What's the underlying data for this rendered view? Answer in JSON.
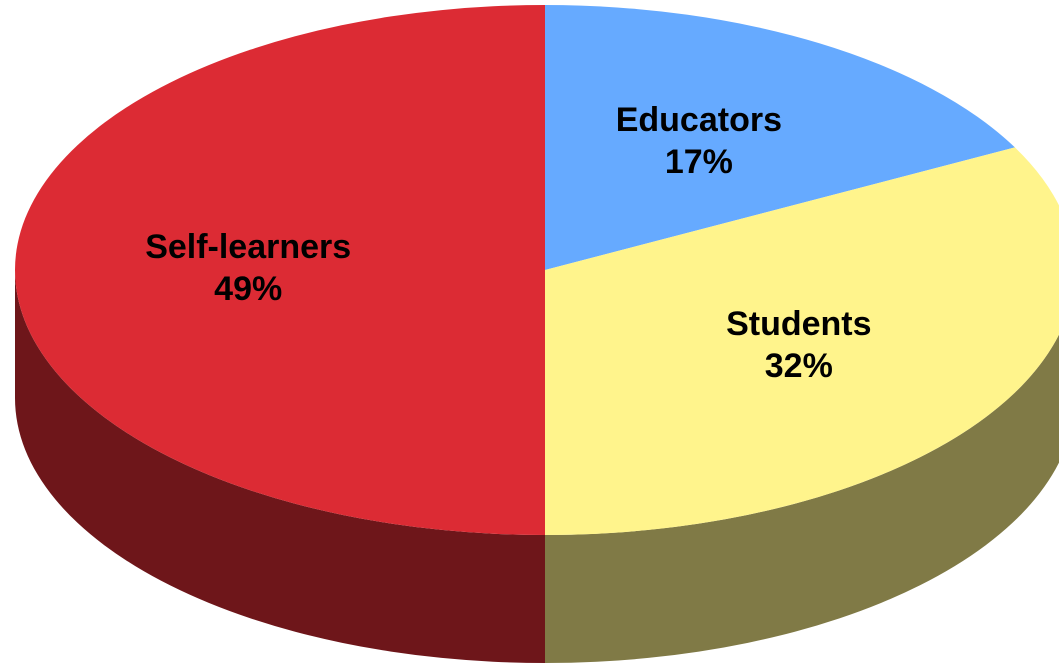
{
  "chart_data": {
    "type": "pie",
    "categories": [
      "Educators",
      "Students",
      "Self-learners"
    ],
    "values": [
      17,
      32,
      49
    ],
    "value_labels": [
      "17%",
      "32%",
      "49%"
    ],
    "colors": [
      "#66aaff",
      "#fff48c",
      "#dc2b34"
    ]
  }
}
